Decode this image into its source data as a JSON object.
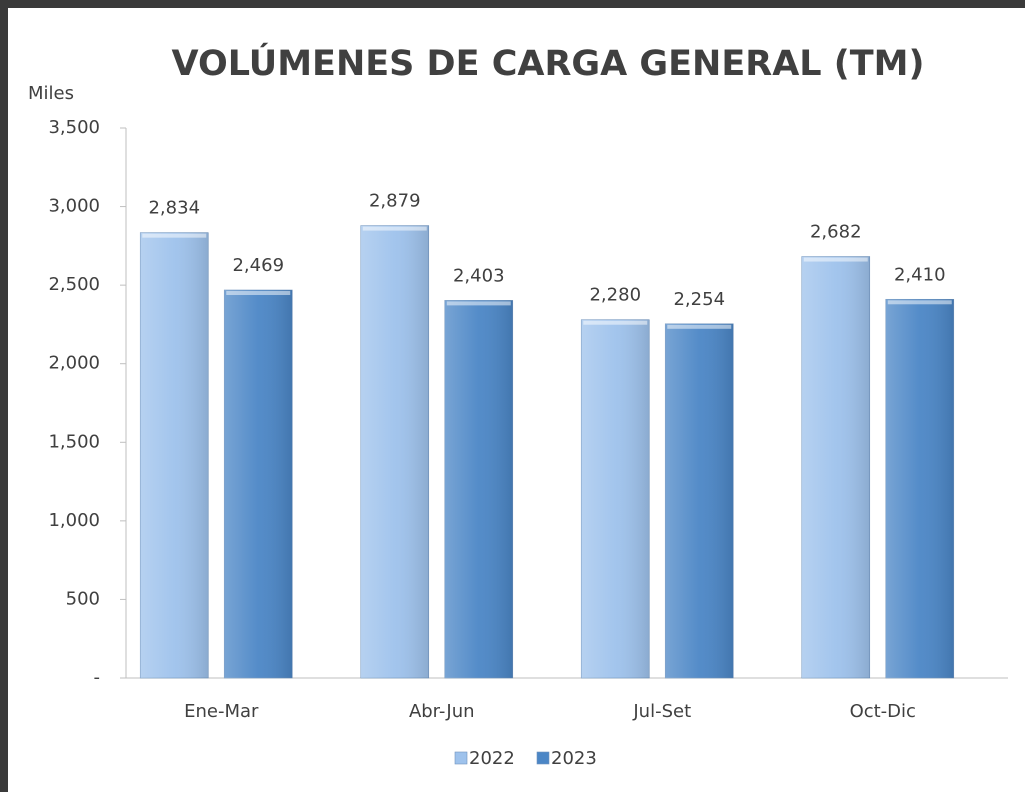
{
  "chart_data": {
    "type": "bar",
    "title": "VOLÚMENES DE CARGA GENERAL (TM)",
    "y_label": "Miles",
    "categories": [
      "Ene-Mar",
      "Abr-Jun",
      "Jul-Set",
      "Oct-Dic"
    ],
    "series": [
      {
        "name": "2022",
        "color": "#9ec2ec",
        "values": [
          2834,
          2879,
          2280,
          2682
        ],
        "value_labels": [
          "2,834",
          "2,879",
          "2,280",
          "2,682"
        ]
      },
      {
        "name": "2023",
        "color": "#4b86c6",
        "values": [
          2469,
          2403,
          2254,
          2410
        ],
        "value_labels": [
          "2,469",
          "2,403",
          "2,254",
          "2,410"
        ]
      }
    ],
    "ylim": [
      0,
      3500
    ],
    "yticks": [
      {
        "value": 0,
        "label": "-"
      },
      500,
      {
        "value": 1000,
        "label": "1,000"
      },
      {
        "value": 1500,
        "label": "1,500"
      },
      {
        "value": 2000,
        "label": "2,000"
      },
      {
        "value": 2500,
        "label": "2,500"
      },
      {
        "value": 3000,
        "label": "3,000"
      },
      {
        "value": 3500,
        "label": "3,500"
      }
    ],
    "legend": "bottom"
  }
}
